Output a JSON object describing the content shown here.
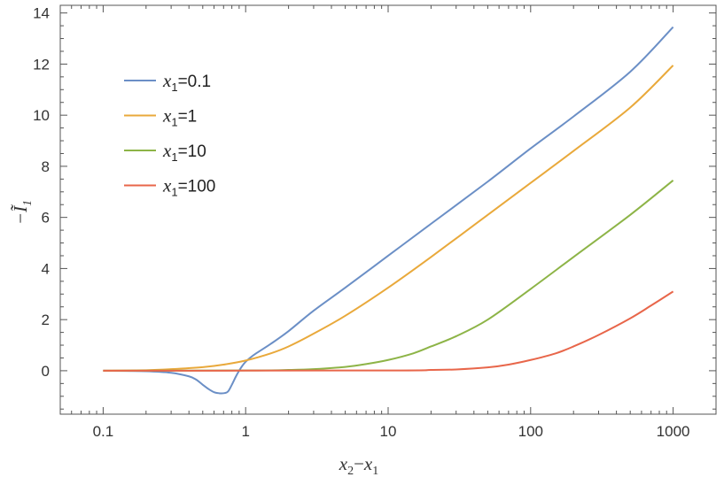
{
  "chart_data": {
    "type": "line",
    "xscale": "log",
    "xlim": [
      0.05,
      2000
    ],
    "ylim": [
      -1.7,
      14.3
    ],
    "xticks": [
      0.1,
      1,
      10,
      100,
      1000
    ],
    "xtick_labels": [
      "0.1",
      "1",
      "10",
      "100",
      "1000"
    ],
    "yticks": [
      0,
      2,
      4,
      6,
      8,
      10,
      12,
      14
    ],
    "ytick_labels": [
      "0",
      "2",
      "4",
      "6",
      "8",
      "10",
      "12",
      "14"
    ],
    "xlabel": {
      "a": "x",
      "a_sub": "2",
      "op": "−",
      "b": "x",
      "b_sub": "1"
    },
    "ylabel": {
      "prefix": "−",
      "sym": "Ĩ",
      "sub": "1"
    },
    "legend_position": "top-left",
    "series": [
      {
        "name": "x1=0.1",
        "label_var": "x",
        "label_sub": "1",
        "label_val": "=0.1",
        "color": "#6b8fc6",
        "x": [
          0.1,
          0.2,
          0.3,
          0.4,
          0.45,
          0.5,
          0.55,
          0.6,
          0.65,
          0.7,
          0.75,
          0.8,
          0.85,
          0.9,
          0.95,
          1.0,
          1.1,
          1.2,
          1.5,
          2,
          3,
          5,
          10,
          20,
          50,
          100,
          200,
          500,
          1000
        ],
        "y": [
          0.0,
          -0.02,
          -0.08,
          -0.22,
          -0.35,
          -0.55,
          -0.72,
          -0.84,
          -0.88,
          -0.88,
          -0.82,
          -0.55,
          -0.25,
          0.0,
          0.2,
          0.35,
          0.55,
          0.7,
          1.05,
          1.55,
          2.35,
          3.25,
          4.5,
          5.75,
          7.4,
          8.7,
          9.95,
          11.7,
          13.45
        ]
      },
      {
        "name": "x1=1",
        "label_var": "x",
        "label_sub": "1",
        "label_val": "=1",
        "color": "#e9a93b",
        "x": [
          0.1,
          0.2,
          0.3,
          0.5,
          0.7,
          1,
          1.5,
          2,
          3,
          5,
          10,
          20,
          50,
          100,
          200,
          500,
          1000
        ],
        "y": [
          0.0,
          0.02,
          0.06,
          0.14,
          0.24,
          0.4,
          0.68,
          0.95,
          1.45,
          2.15,
          3.25,
          4.45,
          6.1,
          7.35,
          8.6,
          10.3,
          11.95
        ]
      },
      {
        "name": "x1=10",
        "label_var": "x",
        "label_sub": "1",
        "label_val": "=10",
        "color": "#8db447",
        "x": [
          0.1,
          1,
          2,
          3,
          5,
          7,
          10,
          15,
          20,
          30,
          50,
          100,
          200,
          500,
          1000
        ],
        "y": [
          0.0,
          0.01,
          0.03,
          0.06,
          0.15,
          0.26,
          0.42,
          0.68,
          0.95,
          1.35,
          2.0,
          3.2,
          4.45,
          6.1,
          7.45
        ]
      },
      {
        "name": "x1=100",
        "label_var": "x",
        "label_sub": "1",
        "label_val": "=100",
        "color": "#e8664a",
        "x": [
          0.1,
          10,
          20,
          30,
          50,
          70,
          100,
          150,
          200,
          300,
          500,
          700,
          1000
        ],
        "y": [
          0.0,
          0.01,
          0.03,
          0.05,
          0.13,
          0.24,
          0.42,
          0.68,
          0.95,
          1.4,
          2.05,
          2.55,
          3.1
        ]
      }
    ]
  }
}
